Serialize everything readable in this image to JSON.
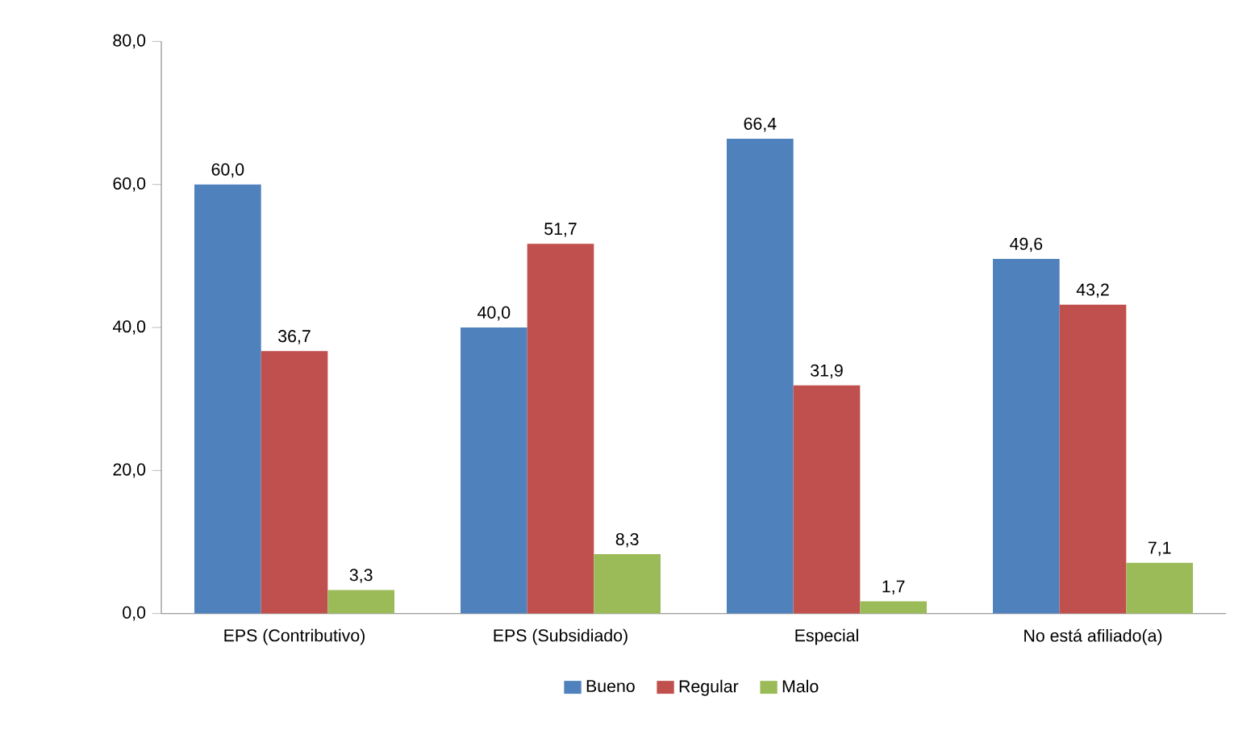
{
  "chart_data": {
    "type": "bar",
    "categories": [
      "EPS (Contributivo)",
      "EPS (Subsidiado)",
      "Especial",
      "No está afiliado(a)"
    ],
    "series": [
      {
        "name": "Bueno",
        "color": "#4f81bd",
        "values": [
          60.0,
          40.0,
          66.4,
          49.6
        ],
        "value_labels": [
          "60,0",
          "40,0",
          "66,4",
          "49,6"
        ]
      },
      {
        "name": "Regular",
        "color": "#c0504d",
        "values": [
          36.7,
          51.7,
          31.9,
          43.2
        ],
        "value_labels": [
          "36,7",
          "51,7",
          "31,9",
          "43,2"
        ]
      },
      {
        "name": "Malo",
        "color": "#9bbb59",
        "values": [
          3.3,
          8.3,
          1.7,
          7.1
        ],
        "value_labels": [
          "3,3",
          "8,3",
          "1,7",
          "7,1"
        ]
      }
    ],
    "ylim": [
      0,
      80
    ],
    "yticks": [
      {
        "value": 0,
        "label": "0,0"
      },
      {
        "value": 20,
        "label": "20,0"
      },
      {
        "value": 40,
        "label": "40,0"
      },
      {
        "value": 60,
        "label": "60,0"
      },
      {
        "value": 80,
        "label": "80,0"
      }
    ],
    "legend": "bottom",
    "grid": false
  }
}
